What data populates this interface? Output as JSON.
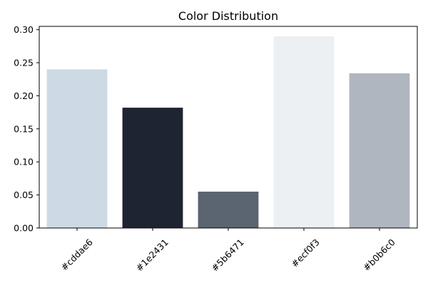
{
  "chart_data": {
    "type": "bar",
    "title": "Color Distribution",
    "xlabel": "",
    "ylabel": "",
    "categories": [
      "#cddae6",
      "#1e2431",
      "#5b6471",
      "#ecf0f3",
      "#b0b6c0"
    ],
    "values": [
      0.24,
      0.182,
      0.055,
      0.29,
      0.234
    ],
    "bar_colors": [
      "#cddae6",
      "#1e2431",
      "#5b6471",
      "#ecf0f3",
      "#b0b6c0"
    ],
    "ylim": [
      0,
      0.305
    ],
    "yticks": [
      0.0,
      0.05,
      0.1,
      0.15,
      0.2,
      0.25,
      0.3
    ],
    "ytick_labels": [
      "0.00",
      "0.05",
      "0.10",
      "0.15",
      "0.20",
      "0.25",
      "0.30"
    ],
    "grid": false,
    "legend": "none"
  }
}
